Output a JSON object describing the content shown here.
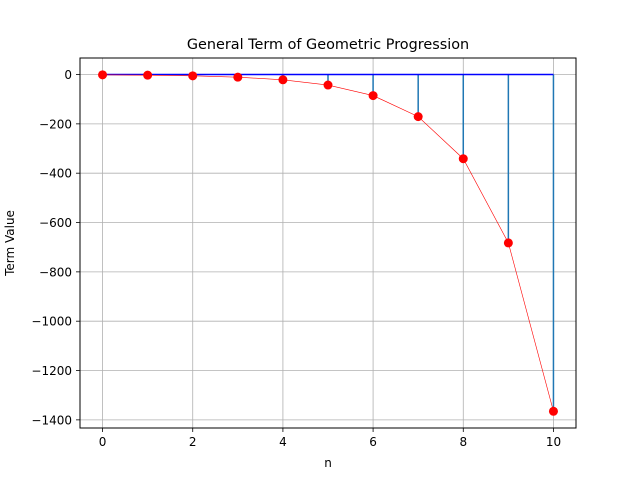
{
  "chart_data": {
    "type": "stem",
    "title": "General Term of Geometric Progression",
    "xlabel": "n",
    "ylabel": "Term Value",
    "xlim": [
      -0.5,
      10.5
    ],
    "ylim": [
      -1433,
      67
    ],
    "x_ticks": [
      0,
      2,
      4,
      6,
      8,
      10
    ],
    "y_ticks": [
      0,
      -200,
      -400,
      -600,
      -800,
      -1000,
      -1200,
      -1400
    ],
    "x_tick_labels": [
      "0",
      "2",
      "4",
      "6",
      "8",
      "10"
    ],
    "y_tick_labels": [
      "0",
      "−200",
      "−400",
      "−600",
      "−800",
      "−1000",
      "−1200",
      "−1400"
    ],
    "grid": true,
    "x": [
      0,
      1,
      2,
      3,
      4,
      5,
      6,
      7,
      8,
      9,
      10
    ],
    "y": [
      -1.33,
      -2.67,
      -5.33,
      -10.67,
      -21.33,
      -42.67,
      -85.33,
      -170.67,
      -341.33,
      -682.67,
      -1365.33
    ],
    "stem_color": "#1f77b4",
    "baseline_color": "#0000ff",
    "marker_color": "#ff0000",
    "line_color": "#ff0000"
  }
}
